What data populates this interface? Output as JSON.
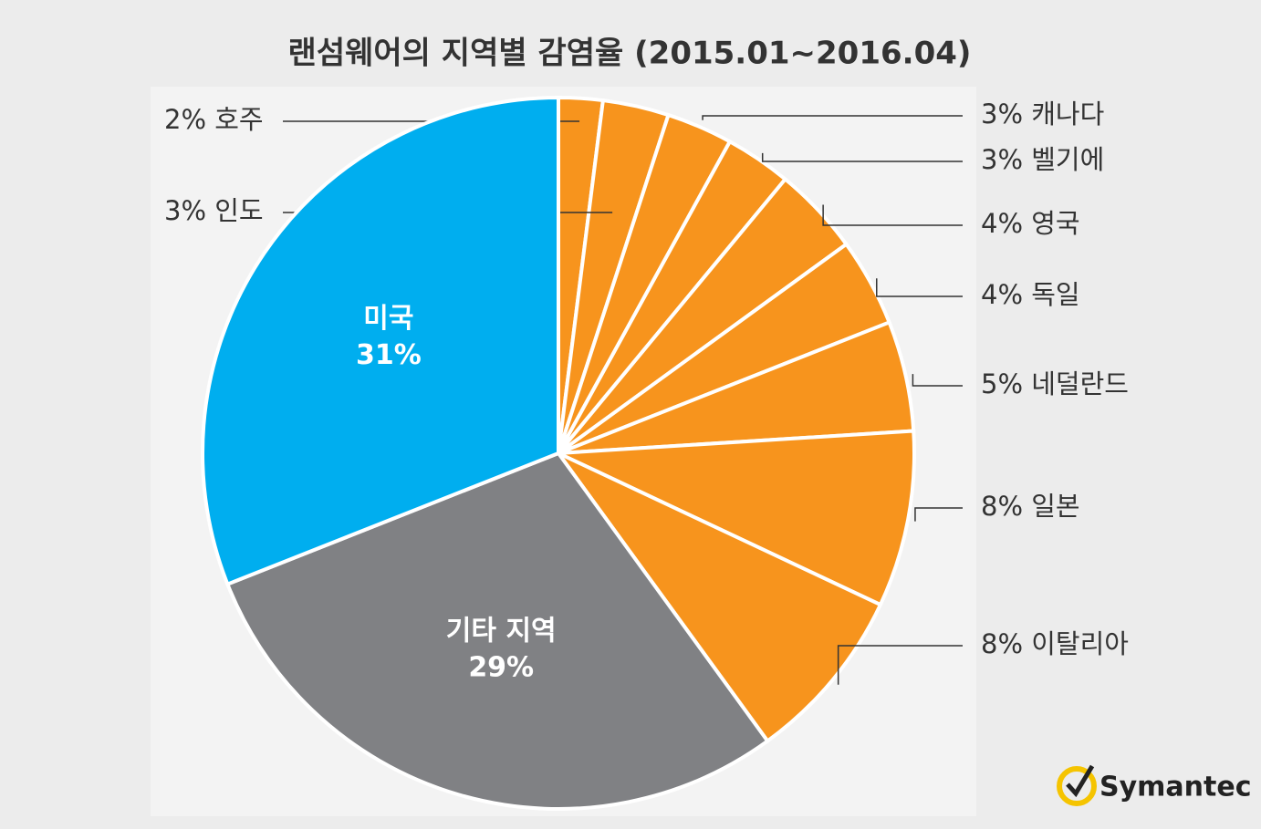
{
  "chart_data": {
    "type": "pie",
    "title": "랜섬웨어의 지역별 감염율 (2015.01~2016.04)",
    "categories": [
      "호주",
      "인도",
      "캐나다",
      "벨기에",
      "영국",
      "독일",
      "네덜란드",
      "일본",
      "이탈리아",
      "기타 지역",
      "미국"
    ],
    "values": [
      2,
      3,
      3,
      3,
      4,
      4,
      5,
      8,
      8,
      29,
      31
    ],
    "value_labels": [
      "2%",
      "3%",
      "3%",
      "3%",
      "4%",
      "4%",
      "5%",
      "8%",
      "8%",
      "29%",
      "31%"
    ],
    "colors": [
      "#f7941d",
      "#f7941d",
      "#f7941d",
      "#f7941d",
      "#f7941d",
      "#f7941d",
      "#f7941d",
      "#f7941d",
      "#f7941d",
      "#808184",
      "#00aeef"
    ],
    "logo": "Symantec"
  }
}
